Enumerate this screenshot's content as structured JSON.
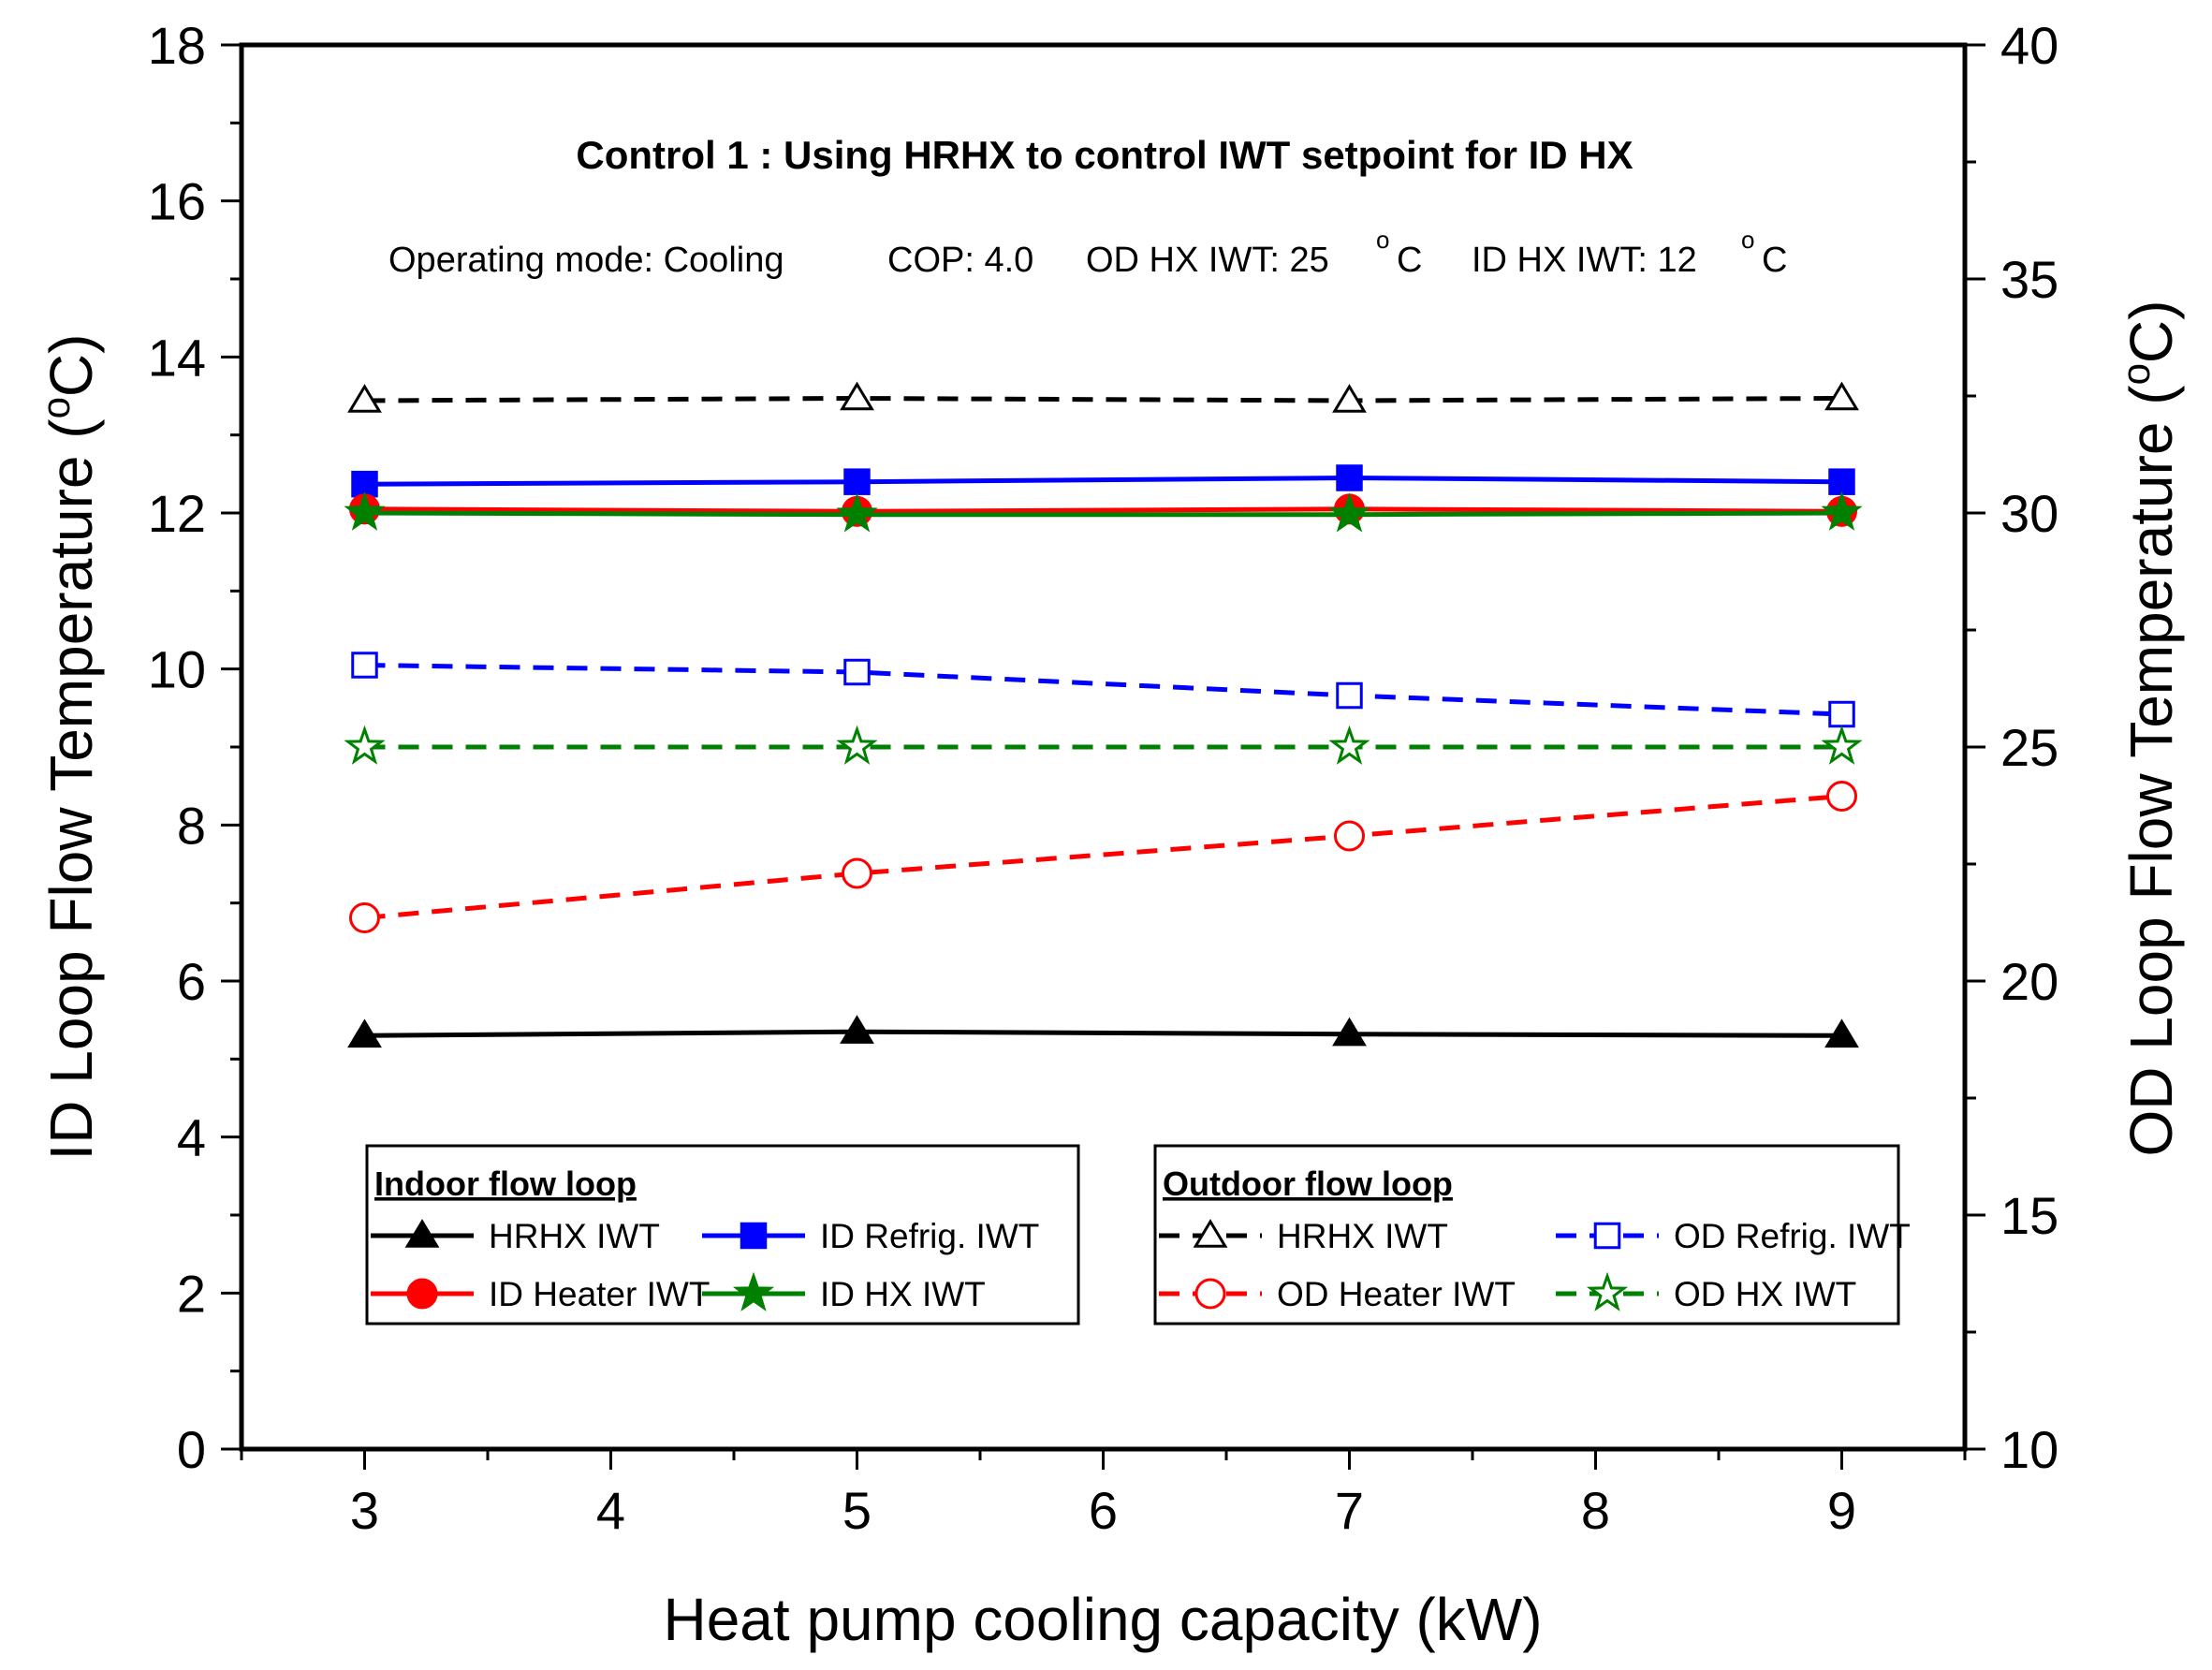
{
  "chart_data": {
    "type": "line",
    "title": "Control 1 : Using HRHX to control IWT setpoint for ID HX",
    "subtitle": {
      "mode": "Operating mode: Cooling",
      "cop": "COP: 4.0",
      "od_iwt": "OD HX IWT: 25",
      "od_iwt_unit": "C",
      "id_iwt": "ID HX IWT: 12",
      "id_iwt_unit": "C",
      "degree_sup": "o"
    },
    "xlabel": "Heat pump cooling capacity (kW)",
    "ylabel": {
      "prefix": "ID Loop Flow Temperature (",
      "sup": "o",
      "suffix": "C)"
    },
    "y2label": {
      "prefix": "OD Loop Flow Temperature (",
      "sup": "o",
      "suffix": "C)"
    },
    "xlim": [
      2.5,
      9.5
    ],
    "ylim": [
      0,
      18
    ],
    "y2lim": [
      10,
      40
    ],
    "x_ticks": [
      3,
      4,
      5,
      6,
      7,
      8,
      9
    ],
    "y_ticks": [
      0,
      2,
      4,
      6,
      8,
      10,
      12,
      14,
      16,
      18
    ],
    "y2_ticks": [
      10,
      15,
      20,
      25,
      30,
      35,
      40
    ],
    "x": [
      3,
      5,
      7,
      9
    ],
    "series": [
      {
        "name": "HRHX IWT",
        "group": "indoor",
        "axis": "left",
        "color": "#000000",
        "marker": "triangle",
        "filled": true,
        "dashed": false,
        "values": [
          5.3,
          5.35,
          5.32,
          5.3
        ]
      },
      {
        "name": "ID Refrig. IWT",
        "group": "indoor",
        "axis": "left",
        "color": "#0000ff",
        "marker": "square",
        "filled": true,
        "dashed": false,
        "values": [
          12.37,
          12.4,
          12.45,
          12.4
        ]
      },
      {
        "name": "ID Heater IWT",
        "group": "indoor",
        "axis": "left",
        "color": "#ff0000",
        "marker": "circle",
        "filled": true,
        "dashed": false,
        "values": [
          12.05,
          12.02,
          12.05,
          12.02
        ]
      },
      {
        "name": "ID HX IWT",
        "group": "indoor",
        "axis": "left",
        "color": "#008000",
        "marker": "star",
        "filled": true,
        "dashed": false,
        "values": [
          12.0,
          11.98,
          11.98,
          12.0
        ]
      },
      {
        "name": "HRHX IWT",
        "group": "outdoor",
        "axis": "right",
        "color": "#000000",
        "marker": "triangle",
        "filled": false,
        "dashed": true,
        "values": [
          32.4,
          32.45,
          32.4,
          32.45
        ]
      },
      {
        "name": "OD Refrig. IWT",
        "group": "outdoor",
        "axis": "right",
        "color": "#0000ff",
        "marker": "square",
        "filled": false,
        "dashed": true,
        "values": [
          26.75,
          26.6,
          26.1,
          25.7
        ]
      },
      {
        "name": "OD Heater IWT",
        "group": "outdoor",
        "axis": "right",
        "color": "#ff0000",
        "marker": "circle",
        "filled": false,
        "dashed": true,
        "values": [
          21.35,
          22.3,
          23.1,
          23.95
        ]
      },
      {
        "name": "OD HX IWT",
        "group": "outdoor",
        "axis": "right",
        "color": "#008000",
        "marker": "star",
        "filled": false,
        "dashed": true,
        "values": [
          25.0,
          25.0,
          25.0,
          25.0
        ]
      }
    ],
    "legend": {
      "indoor_title": "Indoor flow loop",
      "outdoor_title": "Outdoor flow loop",
      "placement": "bottom"
    }
  }
}
